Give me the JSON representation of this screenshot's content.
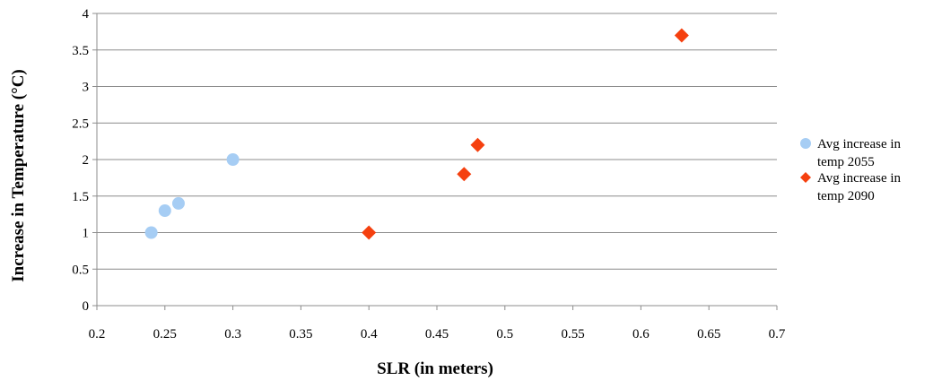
{
  "chart_data": {
    "type": "scatter",
    "title": "",
    "xlabel": "SLR (in meters)",
    "ylabel": "Increase in Temperature (°C)",
    "xlim": [
      0.2,
      0.7
    ],
    "ylim": [
      0,
      4
    ],
    "x_ticks": [
      "0.2",
      "0.25",
      "0.3",
      "0.35",
      "0.4",
      "0.45",
      "0.5",
      "0.55",
      "0.6",
      "0.65",
      "0.7"
    ],
    "y_ticks": [
      "0",
      "0.5",
      "1",
      "1.5",
      "2",
      "2.5",
      "3",
      "3.5",
      "4"
    ],
    "grid": "horizontal",
    "legend_position": "right",
    "series": [
      {
        "name_lines": [
          "Avg increase in",
          "temp 2055"
        ],
        "marker": "circle",
        "color": "#a6cdf4",
        "points": [
          {
            "x": 0.24,
            "y": 1.0
          },
          {
            "x": 0.25,
            "y": 1.3
          },
          {
            "x": 0.26,
            "y": 1.4
          },
          {
            "x": 0.3,
            "y": 2.0
          }
        ]
      },
      {
        "name_lines": [
          "Avg increase in",
          "temp 2090"
        ],
        "marker": "diamond",
        "color": "#f5400f",
        "points": [
          {
            "x": 0.4,
            "y": 1.0
          },
          {
            "x": 0.47,
            "y": 1.8
          },
          {
            "x": 0.48,
            "y": 2.2
          },
          {
            "x": 0.63,
            "y": 3.7
          }
        ]
      }
    ]
  }
}
